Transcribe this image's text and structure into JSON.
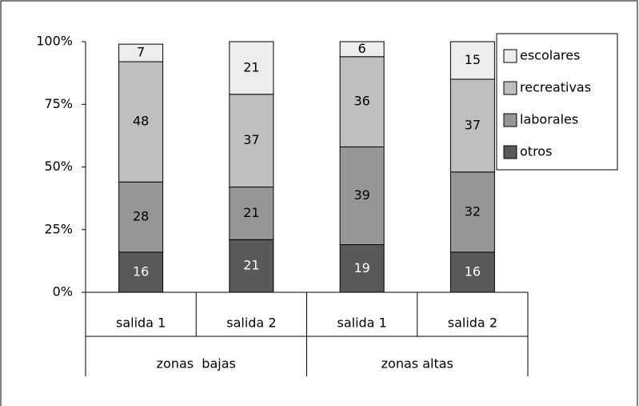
{
  "chart_data": {
    "type": "stacked_bar",
    "categories": [
      "salida 1",
      "salida 2",
      "salida 1",
      "salida 2"
    ],
    "groups": [
      "zonas  bajas",
      "zonas altas"
    ],
    "series": [
      {
        "name": "otros",
        "color": "#595959",
        "values": [
          16,
          21,
          19,
          16
        ]
      },
      {
        "name": "laborales",
        "color": "#969696",
        "values": [
          28,
          21,
          39,
          32
        ]
      },
      {
        "name": "recreativas",
        "color": "#bfbfbf",
        "values": [
          48,
          37,
          36,
          37
        ]
      },
      {
        "name": "escolares",
        "color": "#ededed",
        "values": [
          7,
          21,
          6,
          15
        ]
      }
    ],
    "ylim": [
      0,
      100
    ],
    "yticks": [
      {
        "value": 0,
        "label": "0%"
      },
      {
        "value": 25,
        "label": "25%"
      },
      {
        "value": 50,
        "label": "50%"
      },
      {
        "value": 75,
        "label": "75%"
      },
      {
        "value": 100,
        "label": "100%"
      }
    ],
    "legend": "right"
  }
}
